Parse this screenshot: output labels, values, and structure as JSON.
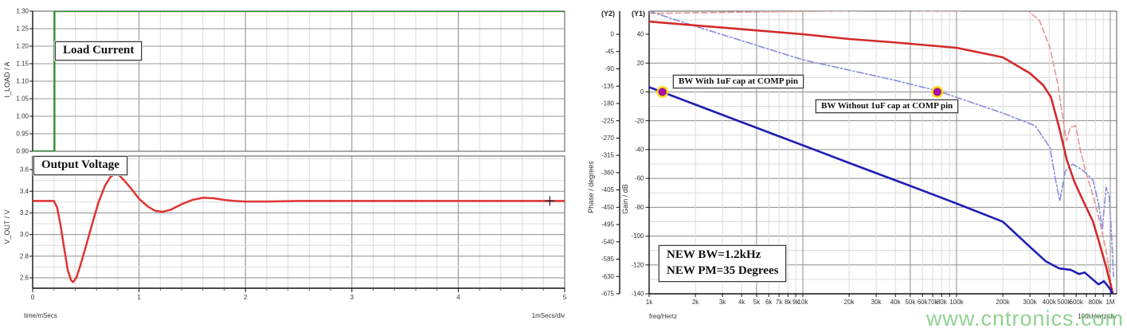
{
  "watermark": {
    "text": "www.cntronics.com",
    "color": "#7dcb7d"
  },
  "colors": {
    "load_current": "#1e8c1e",
    "output_voltage": "#e03434",
    "gain_with_cap": "#1f1fb4",
    "gain_without_cap": "#8d92dd",
    "phase_with_cap": "#d42a2a",
    "phase_without_cap": "#e49b9b",
    "marker_fill": "#a812a8",
    "marker_halo": "#ffd700",
    "grid_dark": "#8c8c8c",
    "grid_light": "#dcdcdc"
  },
  "chart_data": [
    {
      "id": "transient",
      "type": "line",
      "xlabel": "time/mSecs",
      "x_div_label": "1mSecs/div",
      "x_ticks": [
        "0",
        "1",
        "2",
        "3",
        "4",
        "5"
      ],
      "xlim": [
        0,
        5
      ],
      "grid": true,
      "subplots": [
        {
          "title": "Load Current",
          "ylabel": "I_LOAD / A",
          "y_ticks": [
            "1.30",
            "1.25",
            "1.20",
            "1.15",
            "1.10",
            "1.05",
            "1.00",
            "0.95",
            "0.90"
          ],
          "ylim": [
            0.9,
            1.3
          ],
          "series": [
            {
              "name": "load-current",
              "color": "#1e8c1e",
              "style": "solid",
              "points": [
                [
                  0,
                  0.9
                ],
                [
                  0.205,
                  0.9
                ],
                [
                  0.205,
                  1.3
                ],
                [
                  5,
                  1.3
                ]
              ]
            }
          ]
        },
        {
          "title": "Output Voltage",
          "ylabel": "V_OUT / V",
          "y_ticks": [
            "3.6",
            "3.4",
            "3.2",
            "3.0",
            "2.8",
            "2.6"
          ],
          "ylim": [
            2.5,
            3.72
          ],
          "cursor": {
            "t": 4.86,
            "v": 3.31
          },
          "series": [
            {
              "name": "output-voltage",
              "color": "#e03434",
              "style": "solid",
              "points": [
                [
                  0,
                  3.31
                ],
                [
                  0.2,
                  3.31
                ],
                [
                  0.23,
                  3.25
                ],
                [
                  0.26,
                  3.1
                ],
                [
                  0.3,
                  2.85
                ],
                [
                  0.33,
                  2.67
                ],
                [
                  0.36,
                  2.58
                ],
                [
                  0.38,
                  2.56
                ],
                [
                  0.41,
                  2.6
                ],
                [
                  0.45,
                  2.72
                ],
                [
                  0.5,
                  2.89
                ],
                [
                  0.56,
                  3.1
                ],
                [
                  0.62,
                  3.3
                ],
                [
                  0.68,
                  3.45
                ],
                [
                  0.73,
                  3.53
                ],
                [
                  0.77,
                  3.56
                ],
                [
                  0.81,
                  3.55
                ],
                [
                  0.86,
                  3.5
                ],
                [
                  0.93,
                  3.42
                ],
                [
                  1.0,
                  3.33
                ],
                [
                  1.08,
                  3.26
                ],
                [
                  1.15,
                  3.22
                ],
                [
                  1.22,
                  3.21
                ],
                [
                  1.3,
                  3.23
                ],
                [
                  1.4,
                  3.28
                ],
                [
                  1.5,
                  3.32
                ],
                [
                  1.6,
                  3.34
                ],
                [
                  1.7,
                  3.335
                ],
                [
                  1.8,
                  3.32
                ],
                [
                  1.9,
                  3.31
                ],
                [
                  2.0,
                  3.305
                ],
                [
                  2.2,
                  3.305
                ],
                [
                  2.5,
                  3.31
                ],
                [
                  5.0,
                  3.31
                ]
              ]
            }
          ]
        }
      ]
    },
    {
      "id": "bode",
      "type": "line",
      "xlabel": "freq/Hertz",
      "x_div_label": "100kHertz/div",
      "x_scale": "log",
      "xlim": [
        1000,
        1090000
      ],
      "grid": true,
      "x_ticks": [
        {
          "f": 1000,
          "label": "1k"
        },
        {
          "f": 2000,
          "label": "2k"
        },
        {
          "f": 3000,
          "label": "3k"
        },
        {
          "f": 4000,
          "label": "4k"
        },
        {
          "f": 5000,
          "label": "5k",
          "major": true
        },
        {
          "f": 6000,
          "label": "6k"
        },
        {
          "f": 7000,
          "label": "7k"
        },
        {
          "f": 8000,
          "label": "8k"
        },
        {
          "f": 9000,
          "label": "9k"
        },
        {
          "f": 10000,
          "label": "10k",
          "major": true
        },
        {
          "f": 20000,
          "label": "20k"
        },
        {
          "f": 30000,
          "label": "30k"
        },
        {
          "f": 40000,
          "label": "40k"
        },
        {
          "f": 50000,
          "label": "50k",
          "major": true
        },
        {
          "f": 60000,
          "label": "60k"
        },
        {
          "f": 70000,
          "label": "70k"
        },
        {
          "f": 80000,
          "label": "80k"
        },
        {
          "f": 90000,
          "label": ""
        },
        {
          "f": 100000,
          "label": "100k",
          "major": true
        },
        {
          "f": 200000,
          "label": "200k"
        },
        {
          "f": 300000,
          "label": "300k"
        },
        {
          "f": 400000,
          "label": "400k"
        },
        {
          "f": 500000,
          "label": "500k",
          "major": true
        },
        {
          "f": 600000,
          "label": "600k"
        },
        {
          "f": 700000,
          "label": ""
        },
        {
          "f": 800000,
          "label": "800k"
        },
        {
          "f": 900000,
          "label": ""
        },
        {
          "f": 1000000,
          "label": "1M",
          "major": true
        }
      ],
      "axes": [
        {
          "name": "(Y2)",
          "label": "Phase / degrees",
          "top_value": 60,
          "ticks": [
            "0",
            "-45",
            "-90",
            "-135",
            "-180",
            "-225",
            "-270",
            "-315",
            "-360",
            "-405",
            "-450",
            "-495",
            "-540",
            "-585",
            "-630",
            "-675"
          ]
        },
        {
          "name": "(Y1)",
          "label": "Gain / dB",
          "top_value": 56,
          "ticks": [
            "40",
            "20",
            "0",
            "-20",
            "-40",
            "-60",
            "-80",
            "-100",
            "-120",
            "-140"
          ]
        }
      ],
      "series": [
        {
          "name": "phase-without-1uF-cap",
          "axis": "Y2",
          "color": "#e49b9b",
          "style": "dashed",
          "points": [
            [
              1000,
              54
            ],
            [
              5000,
              58
            ],
            [
              30000,
              62
            ],
            [
              100000,
              60
            ],
            [
              190000,
              68
            ],
            [
              272000,
              70
            ],
            [
              345000,
              37
            ],
            [
              405000,
              -35
            ],
            [
              455000,
              -128
            ],
            [
              492000,
              -221
            ],
            [
              520000,
              -277
            ],
            [
              549000,
              -242
            ],
            [
              596000,
              -238
            ],
            [
              633000,
              -294
            ],
            [
              690000,
              -356
            ],
            [
              771000,
              -418
            ],
            [
              858000,
              -491
            ],
            [
              940000,
              -563
            ],
            [
              1020000,
              -656
            ]
          ]
        },
        {
          "name": "gain-without-1uF-cap",
          "axis": "Y1",
          "color": "#8d92dd",
          "style": "dashdot",
          "points": [
            [
              1000,
              56
            ],
            [
              2000,
              45.5
            ],
            [
              5000,
              32.3
            ],
            [
              10000,
              22.3
            ],
            [
              20000,
              15.1
            ],
            [
              38000,
              8.5
            ],
            [
              75000,
              0.8
            ],
            [
              200000,
              -14.7
            ],
            [
              325000,
              -23.5
            ],
            [
              405000,
              -38.5
            ],
            [
              445000,
              -63.3
            ],
            [
              470000,
              -75.5
            ],
            [
              510000,
              -55
            ],
            [
              570000,
              -50.1
            ],
            [
              665000,
              -54.5
            ],
            [
              771000,
              -61.1
            ],
            [
              838000,
              -77.1
            ],
            [
              888000,
              -94.8
            ],
            [
              940000,
              -66.1
            ],
            [
              985000,
              -72.7
            ],
            [
              1020000,
              -100
            ],
            [
              1050000,
              -128
            ]
          ]
        },
        {
          "name": "phase-with-1uF-cap",
          "axis": "Y2",
          "color": "#d42a2a",
          "style": "solid",
          "points": [
            [
              1000,
              33
            ],
            [
              2000,
              23
            ],
            [
              5000,
              10
            ],
            [
              10000,
              0
            ],
            [
              20000,
              -12.4
            ],
            [
              38000,
              -20.7
            ],
            [
              100000,
              -35.2
            ],
            [
              200000,
              -60
            ],
            [
              300000,
              -101.5
            ],
            [
              366000,
              -132.5
            ],
            [
              411000,
              -163.6
            ],
            [
              465000,
              -242.3
            ],
            [
              520000,
              -325.1
            ],
            [
              583000,
              -383.1
            ],
            [
              665000,
              -432.8
            ],
            [
              771000,
              -486.6
            ],
            [
              848000,
              -542.5
            ],
            [
              940000,
              -604.6
            ],
            [
              1040000,
              -675
            ]
          ]
        },
        {
          "name": "gain-with-1uF-cap",
          "axis": "Y1",
          "color": "#1f1fb4",
          "style": "solid",
          "points": [
            [
              1000,
              3.3
            ],
            [
              1210,
              0
            ],
            [
              2000,
              -8.8
            ],
            [
              5000,
              -24.9
            ],
            [
              10000,
              -37
            ],
            [
              20000,
              -49.2
            ],
            [
              50000,
              -65.2
            ],
            [
              100000,
              -77.4
            ],
            [
              200000,
              -90
            ],
            [
              300000,
              -107.5
            ],
            [
              380000,
              -117.4
            ],
            [
              465000,
              -122.4
            ],
            [
              556000,
              -123.5
            ],
            [
              626000,
              -126.3
            ],
            [
              681000,
              -125.2
            ],
            [
              771000,
              -130.2
            ],
            [
              838000,
              -133.5
            ],
            [
              909000,
              -131.3
            ],
            [
              1000000,
              -136.8
            ],
            [
              1060000,
              -143
            ]
          ]
        }
      ],
      "markers": [
        {
          "label": "BW With 1uF cap at COMP pin",
          "freq_hz": 1220,
          "gain_db": 0
        },
        {
          "label": "BW Without 1uF cap at COMP pin",
          "freq_hz": 75000,
          "gain_db": 0
        }
      ],
      "note_box": {
        "lines": [
          "NEW BW=1.2kHz",
          "NEW PM=35 Degrees"
        ]
      }
    }
  ]
}
